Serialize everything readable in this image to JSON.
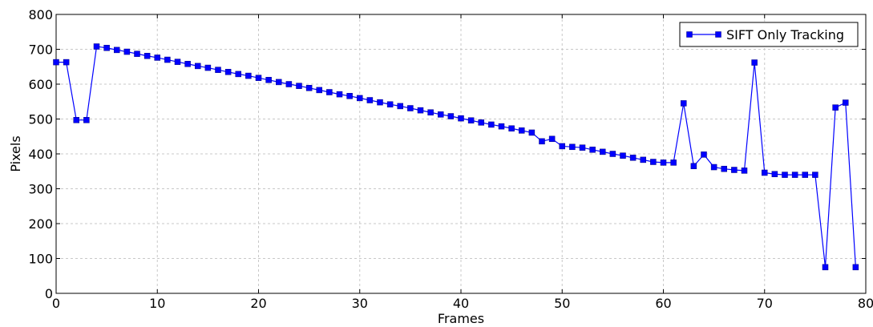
{
  "chart_data": {
    "type": "line",
    "title": "",
    "xlabel": "Frames",
    "ylabel": "Pixels",
    "xlim": [
      0,
      80
    ],
    "ylim": [
      0,
      800
    ],
    "xticks": [
      0,
      10,
      20,
      30,
      40,
      50,
      60,
      70,
      80
    ],
    "yticks": [
      0,
      100,
      200,
      300,
      400,
      500,
      600,
      700,
      800
    ],
    "grid": true,
    "legend_position": "top-right",
    "series": [
      {
        "name": "SIFT Only Tracking",
        "color": "#0000ff",
        "marker": "square",
        "x": [
          0,
          1,
          2,
          3,
          4,
          5,
          6,
          7,
          8,
          9,
          10,
          11,
          12,
          13,
          14,
          15,
          16,
          17,
          18,
          19,
          20,
          21,
          22,
          23,
          24,
          25,
          26,
          27,
          28,
          29,
          30,
          31,
          32,
          33,
          34,
          35,
          36,
          37,
          38,
          39,
          40,
          41,
          42,
          43,
          44,
          45,
          46,
          47,
          48,
          49,
          50,
          51,
          52,
          53,
          54,
          55,
          56,
          57,
          58,
          59,
          60,
          61,
          62,
          63,
          64,
          65,
          66,
          67,
          68,
          69,
          70,
          71,
          72,
          73,
          74,
          75,
          76,
          77,
          78,
          79
        ],
        "y": [
          663,
          663,
          497,
          497,
          708,
          704,
          698,
          693,
          687,
          681,
          676,
          670,
          664,
          658,
          652,
          647,
          641,
          635,
          629,
          624,
          618,
          612,
          606,
          600,
          595,
          589,
          583,
          577,
          571,
          566,
          560,
          554,
          548,
          542,
          537,
          531,
          525,
          519,
          513,
          508,
          502,
          496,
          490,
          484,
          479,
          473,
          467,
          461,
          436,
          443,
          422,
          420,
          418,
          412,
          406,
          400,
          395,
          389,
          383,
          377,
          375,
          375,
          545,
          365,
          398,
          362,
          357,
          354,
          352,
          662,
          346,
          342,
          340,
          340,
          340,
          340,
          75,
          533,
          547,
          75
        ]
      }
    ]
  }
}
